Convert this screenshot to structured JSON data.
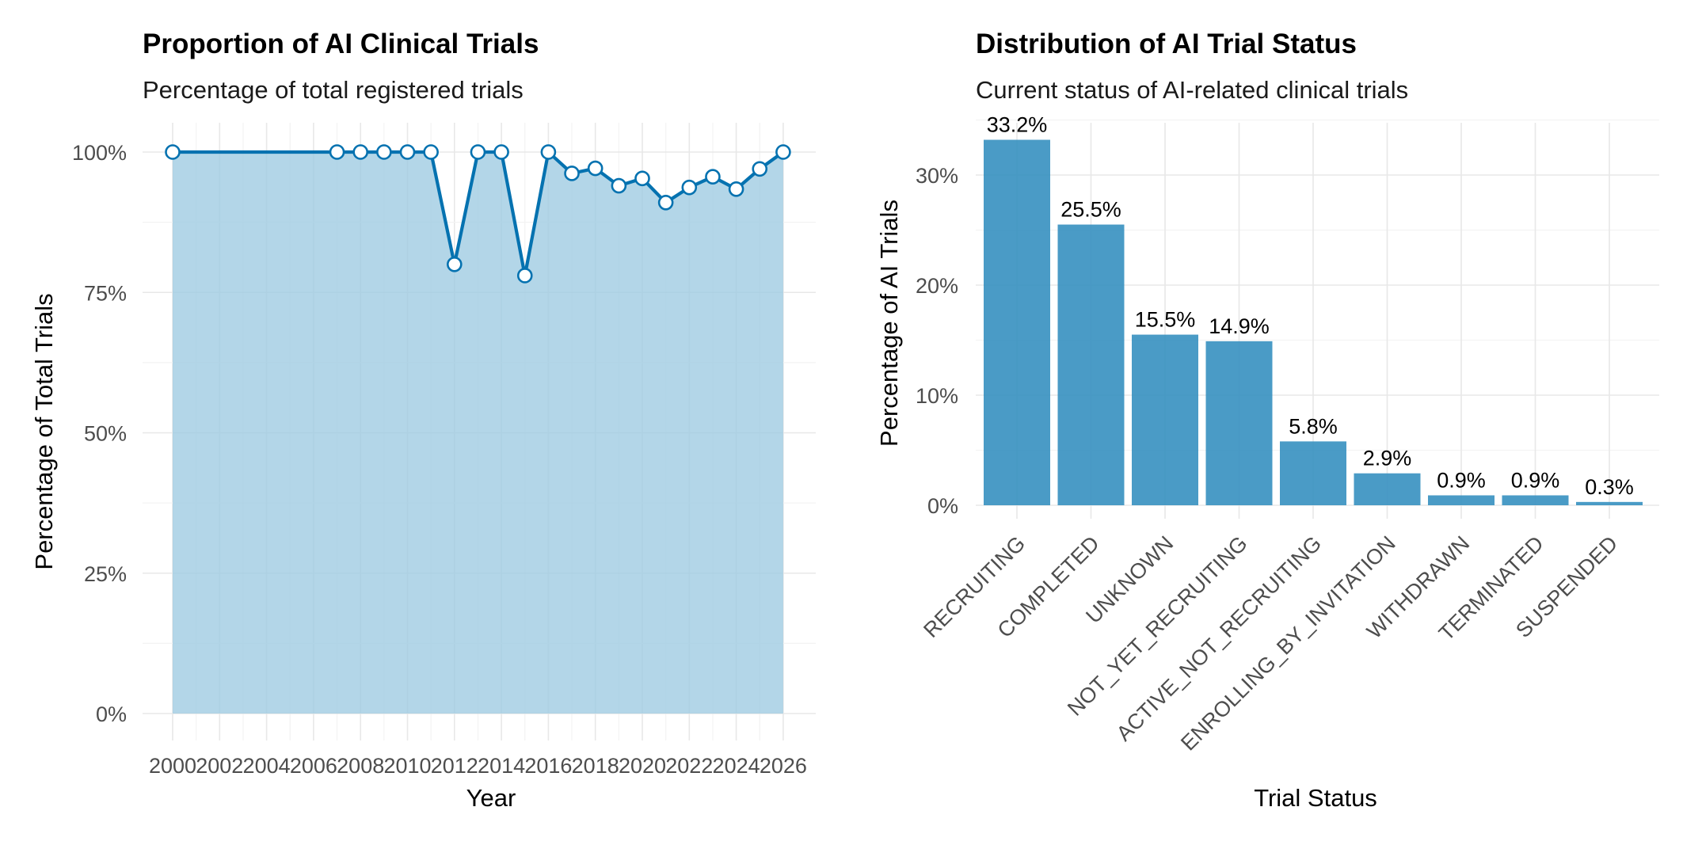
{
  "colors": {
    "line": "#0572b0",
    "area_fill": "#9ecae1",
    "bar_fill": "#3690c0",
    "marker_fill": "#ffffff"
  },
  "chart_data": [
    {
      "type": "area",
      "title": "Proportion of AI Clinical Trials",
      "subtitle": "Percentage of total registered trials",
      "xlabel": "Year",
      "ylabel": "Percentage of Total Trials",
      "xlim": [
        2000,
        2026
      ],
      "ylim": [
        0,
        100
      ],
      "x_ticks": [
        "2000",
        "2002",
        "2004",
        "2006",
        "2008",
        "2010",
        "2012",
        "2014",
        "2016",
        "2018",
        "2020",
        "2022",
        "2024",
        "2026"
      ],
      "y_ticks": [
        "0%",
        "25%",
        "50%",
        "75%",
        "100%"
      ],
      "grid": true,
      "series": [
        {
          "x": [
            2000,
            2007,
            2008,
            2009,
            2010,
            2011,
            2012,
            2013,
            2014,
            2015,
            2016,
            2017,
            2018,
            2019,
            2020,
            2021,
            2022,
            2023,
            2024,
            2025,
            2026
          ],
          "values": [
            100,
            100,
            100,
            100,
            100,
            100,
            80,
            100,
            100,
            78,
            100,
            96.2,
            97.1,
            94,
            95.3,
            91,
            93.7,
            95.6,
            93.4,
            97,
            100
          ]
        }
      ]
    },
    {
      "type": "bar",
      "title": "Distribution of AI Trial Status",
      "subtitle": "Current status of AI-related clinical trials",
      "xlabel": "Trial Status",
      "ylabel": "Percentage of AI Trials",
      "ylim": [
        0,
        35
      ],
      "y_ticks": [
        "0%",
        "10%",
        "20%",
        "30%"
      ],
      "grid": true,
      "categories": [
        "RECRUITING",
        "COMPLETED",
        "UNKNOWN",
        "NOT_YET_RECRUITING",
        "ACTIVE_NOT_RECRUITING",
        "ENROLLING_BY_INVITATION",
        "WITHDRAWN",
        "TERMINATED",
        "SUSPENDED"
      ],
      "values": [
        33.2,
        25.5,
        15.5,
        14.9,
        5.8,
        2.9,
        0.9,
        0.9,
        0.3
      ],
      "data_labels": [
        "33.2%",
        "25.5%",
        "15.5%",
        "14.9%",
        "5.8%",
        "2.9%",
        "0.9%",
        "0.9%",
        "0.3%"
      ]
    }
  ]
}
